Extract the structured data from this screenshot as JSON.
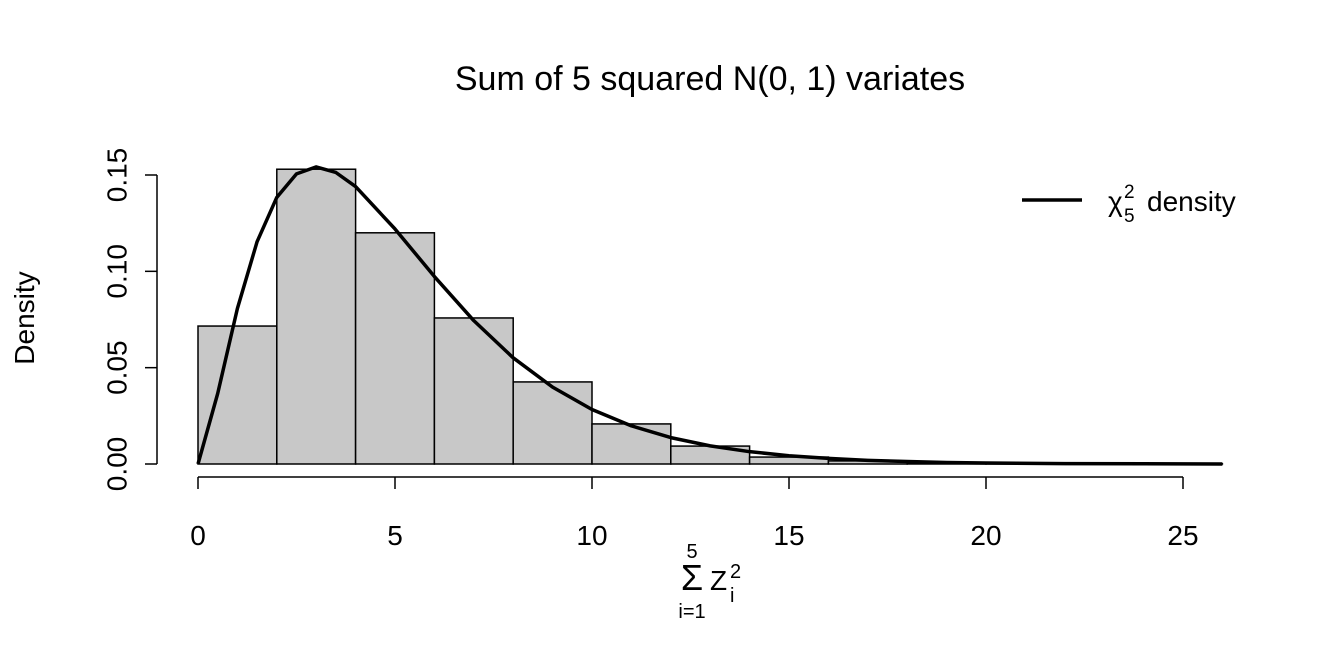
{
  "chart_data": {
    "type": "histogram",
    "title": "Sum of 5 squared N(0, 1) variates",
    "y_label": "Density",
    "x_label": {
      "symbol": "Σ",
      "upper": "5",
      "lower": "i=1",
      "base": "Z",
      "sub": "i",
      "sup": "2"
    },
    "bins": [
      0,
      2,
      4,
      6,
      8,
      10,
      12,
      14,
      16,
      18,
      20,
      22,
      24,
      26
    ],
    "values": [
      0.0716,
      0.153,
      0.12,
      0.0758,
      0.0426,
      0.0208,
      0.0093,
      0.0036,
      0.0016,
      0.0005,
      0.0002,
      0.0001,
      0.0001
    ],
    "color": "#c8c8c8",
    "density": {
      "name": {
        "symbol": "χ",
        "sub": "5",
        "sup": "2",
        "text": "density"
      },
      "color": "#000000",
      "x": [
        0,
        0.5,
        1,
        1.5,
        2,
        2.5,
        3,
        3.5,
        4,
        5,
        6,
        7,
        8,
        9,
        10,
        11,
        12,
        13,
        14,
        15,
        16,
        17,
        18,
        19,
        20,
        22,
        24,
        26
      ],
      "values": [
        0,
        0.0366,
        0.0807,
        0.1154,
        0.1384,
        0.1506,
        0.1542,
        0.1513,
        0.144,
        0.122,
        0.0973,
        0.0744,
        0.0551,
        0.0399,
        0.0283,
        0.0198,
        0.0137,
        0.0094,
        0.0064,
        0.0043,
        0.0029,
        0.0019,
        0.0013,
        0.0008,
        0.0005,
        0.0002,
        0.0001,
        0
      ]
    },
    "legend": "top-right",
    "xlim": [
      0,
      25
    ],
    "xticks": [
      0,
      5,
      10,
      15,
      20,
      25
    ],
    "ylim": [
      0,
      0.15
    ],
    "yticks": [
      {
        "value": 0,
        "label": "0.00"
      },
      {
        "value": 0.05,
        "label": "0.05"
      },
      {
        "value": 0.1,
        "label": "0.10"
      },
      {
        "value": 0.15,
        "label": "0.15"
      }
    ]
  }
}
